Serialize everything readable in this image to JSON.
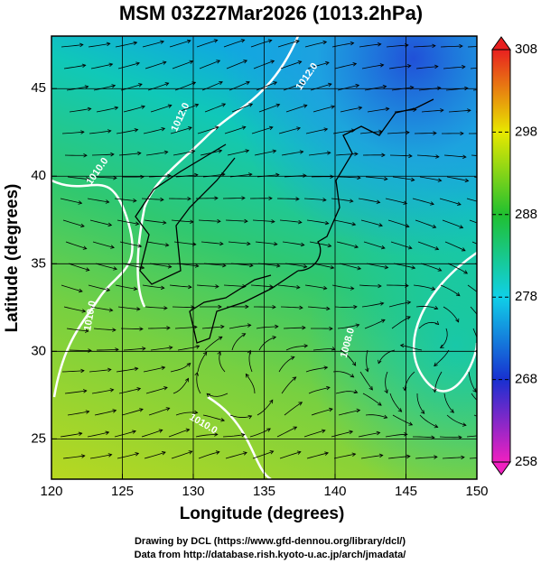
{
  "chart_data": {
    "type": "field",
    "title": "MSM 03Z27Mar2026 (1013.2hPa)",
    "x_label": "Longitude (degrees)",
    "y_label": "Latitude  (degrees)",
    "xlim": [
      120,
      150
    ],
    "ylim": [
      22.7,
      48.0
    ],
    "xticks": [
      120,
      125,
      130,
      135,
      140,
      145,
      150
    ],
    "yticks": [
      25,
      30,
      35,
      40,
      45
    ],
    "grid": true,
    "colorbar": {
      "lim": [
        258,
        308
      ],
      "ticks": [
        258,
        268,
        278,
        288,
        298,
        308
      ]
    },
    "contour_labels": [
      "1012.0",
      "1012.0",
      "1010.0",
      "1010.0",
      "1008.0",
      "1010.0"
    ],
    "footer": [
      "Drawing by DCL (https://www.gfd-dennou.org/library/dcl/)",
      "Data from http://database.rish.kyoto-u.ac.jp/arch/jmadata/"
    ]
  }
}
